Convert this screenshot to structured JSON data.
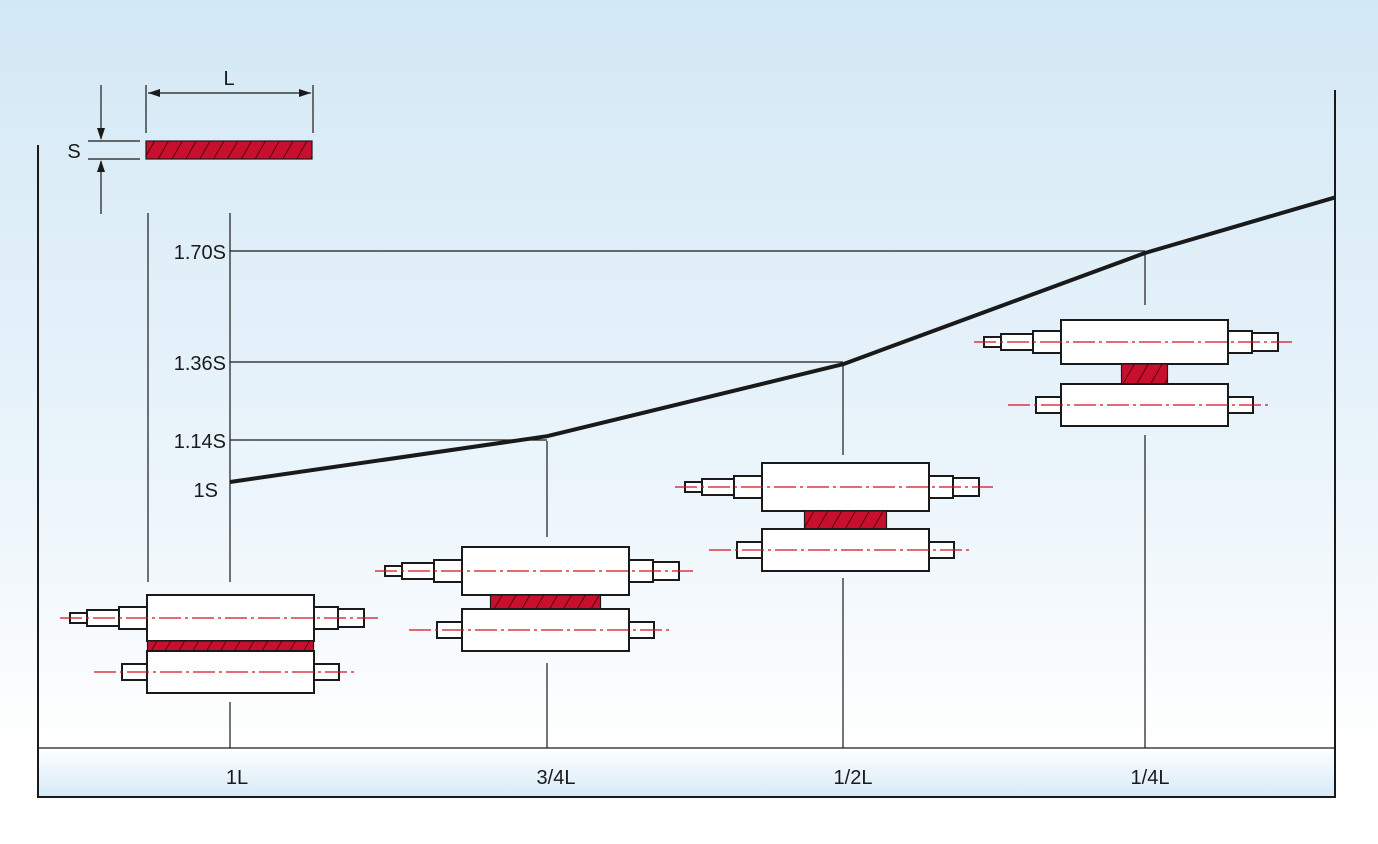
{
  "diagram": {
    "legend": {
      "length_label": "L",
      "thickness_label": "S"
    },
    "thickness_labels": [
      "1.70S",
      "1.36S",
      "1.14S",
      "1S"
    ],
    "length_labels": [
      "1L",
      "3/4L",
      "1/2L",
      "1/4L"
    ]
  },
  "colors": {
    "background_top": "#d3e8f5",
    "background_bottom": "#ffffff",
    "workpiece": "#c8102e",
    "center_line": "#d0121e",
    "stroke": "#1a1a1a",
    "bottom_band": "#dcedf8"
  },
  "chart_data": {
    "type": "line",
    "x": [
      "1L",
      "3/4L",
      "1/2L",
      "1/4L"
    ],
    "series": [
      {
        "values": [
          1.0,
          1.14,
          1.36,
          1.7
        ]
      }
    ]
  }
}
